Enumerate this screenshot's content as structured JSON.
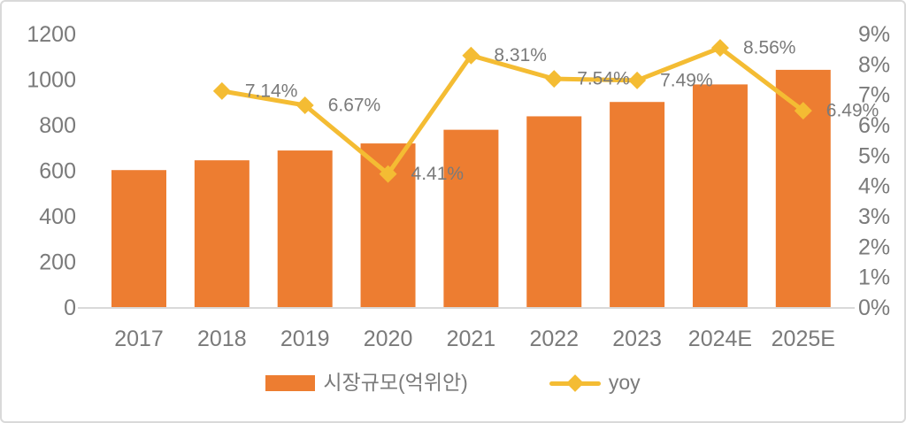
{
  "colors": {
    "bar": "#ED7D31",
    "line": "#F4BC33",
    "text": "#7a7a7a",
    "axis_line": "#d9d9d9"
  },
  "chart_data": {
    "type": "combo-bar-line",
    "title": "",
    "categories": [
      "2017",
      "2018",
      "2019",
      "2020",
      "2021",
      "2022",
      "2023",
      "2024E",
      "2025E"
    ],
    "series": [
      {
        "name": "시장규모(억위안)",
        "type": "bar",
        "axis": "left",
        "color": "#ED7D31",
        "values": [
          605,
          648,
          691,
          722,
          782,
          841,
          904,
          981,
          1045
        ]
      },
      {
        "name": "yoy",
        "type": "line",
        "axis": "right",
        "color": "#F4BC33",
        "values": [
          null,
          7.14,
          6.67,
          4.41,
          8.31,
          7.54,
          7.49,
          8.56,
          6.49
        ],
        "point_labels": [
          "",
          "7.14%",
          "6.67%",
          "4.41%",
          "8.31%",
          "7.54%",
          "7.49%",
          "8.56%",
          "6.49%"
        ]
      }
    ],
    "left_axis": {
      "min": 0,
      "max": 1200,
      "ticks": [
        "0",
        "200",
        "400",
        "600",
        "800",
        "1000",
        "1200"
      ]
    },
    "right_axis": {
      "min": 0,
      "max": 9,
      "ticks": [
        "0%",
        "1%",
        "2%",
        "3%",
        "4%",
        "5%",
        "6%",
        "7%",
        "8%",
        "9%"
      ]
    },
    "grid": false,
    "legend_position": "bottom"
  }
}
